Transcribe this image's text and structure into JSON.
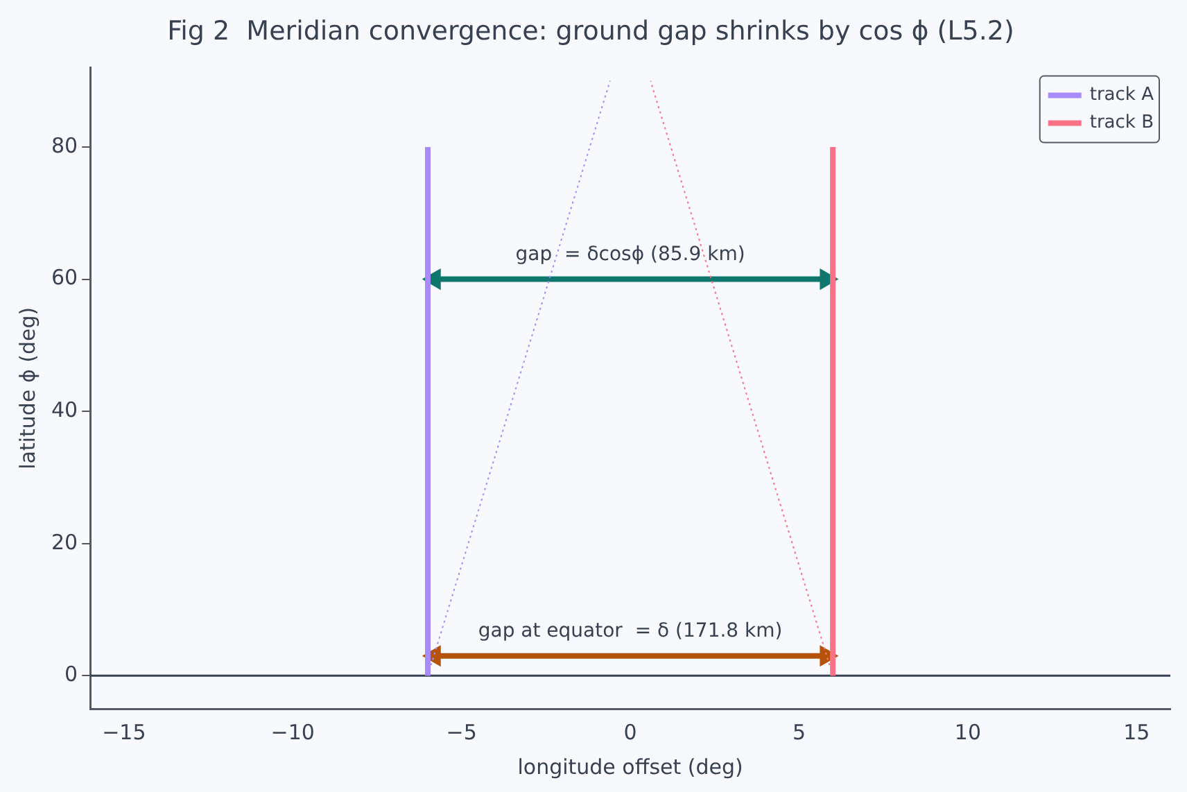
{
  "chart_data": {
    "type": "line",
    "title": "Fig 2  Meridian convergence: ground gap shrinks by cos ϕ (L5.2)",
    "xlabel": "longitude offset (deg)",
    "ylabel": "latitude ϕ (deg)",
    "series": [
      {
        "name": "track A",
        "color": "#a78bfa",
        "x": [
          -6,
          -6
        ],
        "values": [
          0,
          80
        ]
      },
      {
        "name": "track B",
        "color": "#fb7185",
        "x": [
          6,
          6
        ],
        "values": [
          0,
          80
        ]
      },
      {
        "color": "#a78bfa",
        "x": [
          -6,
          -0.6
        ],
        "values": [
          0,
          90
        ],
        "line_style": "dotted"
      },
      {
        "color": "#fb7185",
        "x": [
          6,
          0.6
        ],
        "values": [
          0,
          90
        ],
        "line_style": "dotted"
      },
      {
        "color": "#0f766e",
        "x": [
          -5.8,
          5.8
        ],
        "values": [
          60,
          60
        ],
        "marker": "triangle"
      },
      {
        "color": "#b45309",
        "x": [
          -5.8,
          5.8
        ],
        "values": [
          3,
          3
        ],
        "marker": "triangle"
      }
    ],
    "annotations": [
      "gap  = δcosϕ (85.9 km)",
      "gap at equator  = δ (171.8 km)"
    ],
    "ref_lines": [
      {
        "axis": "y",
        "value": 0,
        "color": "#374151"
      }
    ],
    "xlim": [
      -16,
      16
    ],
    "xticks": [
      -15,
      -10,
      -5,
      0,
      5,
      10,
      15
    ],
    "ylim": [
      -5,
      92
    ],
    "yticks": [
      0,
      20,
      40,
      60,
      80
    ],
    "grid": false,
    "legend": "top right",
    "line_style": "solid",
    "marker": "none"
  }
}
